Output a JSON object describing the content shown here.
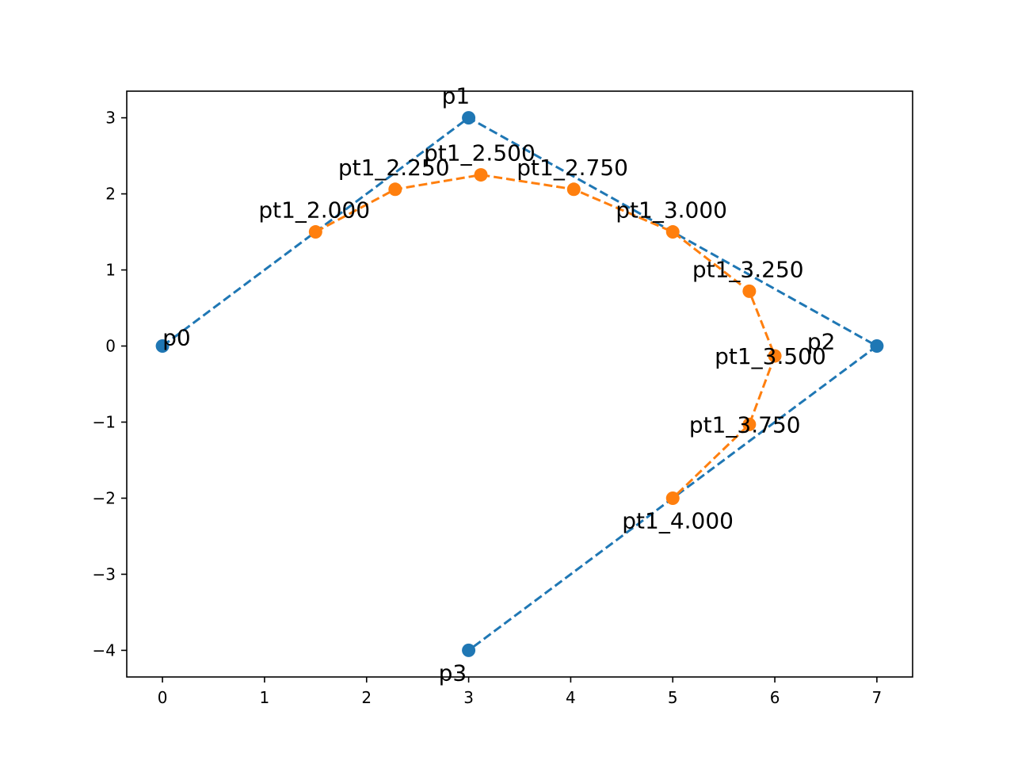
{
  "chart_data": {
    "type": "line",
    "title": "",
    "xlabel": "",
    "ylabel": "",
    "xlim": [
      -0.35,
      7.35
    ],
    "ylim": [
      -4.35,
      3.35
    ],
    "x_ticks": [
      {
        "value": 0,
        "label": "0"
      },
      {
        "value": 1,
        "label": "1"
      },
      {
        "value": 2,
        "label": "2"
      },
      {
        "value": 3,
        "label": "3"
      },
      {
        "value": 4,
        "label": "4"
      },
      {
        "value": 5,
        "label": "5"
      },
      {
        "value": 6,
        "label": "6"
      },
      {
        "value": 7,
        "label": "7"
      }
    ],
    "y_ticks": [
      {
        "value": 3,
        "label": "3"
      },
      {
        "value": 2,
        "label": "2"
      },
      {
        "value": 1,
        "label": "1"
      },
      {
        "value": 0,
        "label": "0"
      },
      {
        "value": -1,
        "label": "−1"
      },
      {
        "value": -2,
        "label": "−2"
      },
      {
        "value": -3,
        "label": "−3"
      },
      {
        "value": -4,
        "label": "−4"
      }
    ],
    "grid": false,
    "series": [
      {
        "color": "#1f77b4",
        "linestyle": "dashed",
        "marker": "circle",
        "points": [
          {
            "x": 0,
            "y": 0,
            "label": "p0",
            "label_pos": "above-right"
          },
          {
            "x": 3,
            "y": 3,
            "label": "p1",
            "label_pos": "above"
          },
          {
            "x": 7,
            "y": 0,
            "label": "p2",
            "label_pos": "above-left"
          },
          {
            "x": 3,
            "y": -4,
            "label": "p3",
            "label_pos": "below"
          }
        ]
      },
      {
        "color": "#ff7f0e",
        "linestyle": "dashed",
        "marker": "circle",
        "points": [
          {
            "x": 1.5,
            "y": 1.5,
            "label": "pt1_2.000",
            "label_pos": "above"
          },
          {
            "x": 2.28,
            "y": 2.06,
            "label": "pt1_2.250",
            "label_pos": "above"
          },
          {
            "x": 3.12,
            "y": 2.25,
            "label": "pt1_2.500",
            "label_pos": "above"
          },
          {
            "x": 4.03,
            "y": 2.06,
            "label": "pt1_2.750",
            "label_pos": "above"
          },
          {
            "x": 5.0,
            "y": 1.5,
            "label": "pt1_3.000",
            "label_pos": "above"
          },
          {
            "x": 5.75,
            "y": 0.72,
            "label": "pt1_3.250",
            "label_pos": "above"
          },
          {
            "x": 6.0,
            "y": -0.13,
            "label": "pt1_3.500",
            "label_pos": "center"
          },
          {
            "x": 5.75,
            "y": -1.03,
            "label": "pt1_3.750",
            "label_pos": "center"
          },
          {
            "x": 5.0,
            "y": -2.0,
            "label": "pt1_4.000",
            "label_pos": "below"
          }
        ]
      }
    ]
  }
}
